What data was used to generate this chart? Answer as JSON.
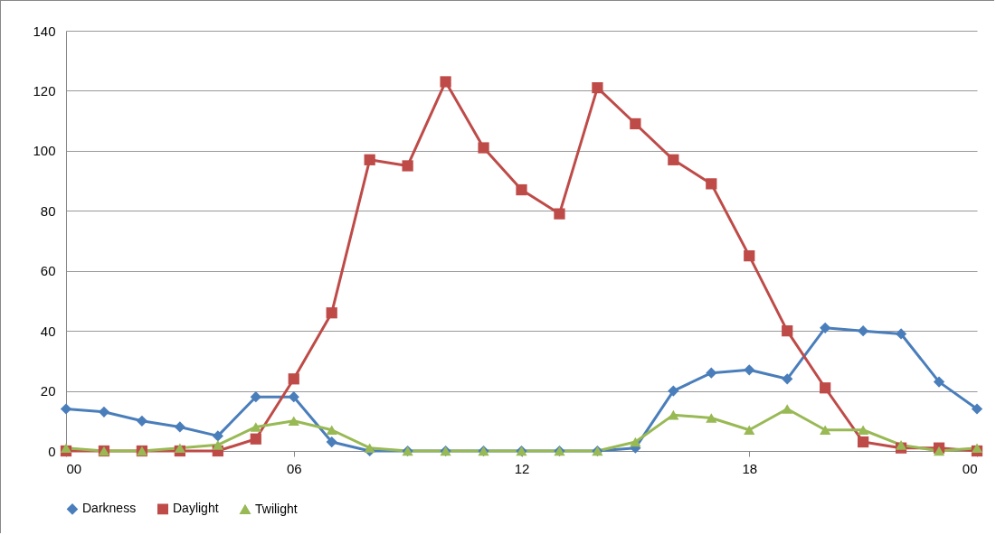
{
  "chart_data": {
    "type": "line",
    "x": [
      0,
      1,
      2,
      3,
      4,
      5,
      6,
      7,
      8,
      9,
      10,
      11,
      12,
      13,
      14,
      15,
      16,
      17,
      18,
      19,
      20,
      21,
      22,
      23,
      24
    ],
    "xlim": [
      0,
      24
    ],
    "xticks": [
      {
        "value": 0,
        "label": "00"
      },
      {
        "value": 6,
        "label": "06"
      },
      {
        "value": 12,
        "label": "12"
      },
      {
        "value": 18,
        "label": "18"
      },
      {
        "value": 24,
        "label": "00"
      }
    ],
    "ylim": [
      0,
      140
    ],
    "yticks": [
      0,
      20,
      40,
      60,
      80,
      100,
      120,
      140
    ],
    "grid": "y",
    "legend": "bottom",
    "line_style": "solid",
    "series": [
      {
        "name": "Darkness",
        "color": "#4a7ebb",
        "marker": "diamond",
        "values": [
          14,
          13,
          10,
          8,
          5,
          18,
          18,
          3,
          0,
          0,
          0,
          0,
          0,
          0,
          0,
          1,
          20,
          26,
          27,
          24,
          41,
          40,
          39,
          23,
          14
        ]
      },
      {
        "name": "Daylight",
        "color": "#be4b48",
        "marker": "square",
        "values": [
          0,
          0,
          0,
          0,
          0,
          4,
          24,
          46,
          97,
          95,
          123,
          101,
          87,
          79,
          121,
          109,
          97,
          89,
          65,
          40,
          21,
          3,
          1,
          1,
          0
        ]
      },
      {
        "name": "Twilight",
        "color": "#98b954",
        "marker": "triangle",
        "values": [
          1,
          0,
          0,
          1,
          2,
          8,
          10,
          7,
          1,
          0,
          0,
          0,
          0,
          0,
          0,
          3,
          12,
          11,
          7,
          14,
          7,
          7,
          2,
          0,
          1
        ]
      }
    ]
  }
}
